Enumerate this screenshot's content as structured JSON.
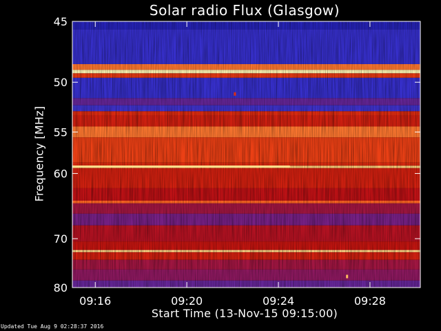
{
  "updated": "Updated Tue Aug  9 02:28:37 2016",
  "chart_data": {
    "type": "heatmap",
    "title": "Solar radio Flux (Glasgow)",
    "xlabel": "Start Time (13-Nov-15 09:15:00)",
    "ylabel": "Frequency [MHz]",
    "x_ticks": [
      "09:16",
      "09:20",
      "09:24",
      "09:28"
    ],
    "x_tick_minutes": [
      1,
      5,
      9,
      13
    ],
    "xlim_minutes": [
      0,
      15.2
    ],
    "y_ticks": [
      45,
      50,
      55,
      60,
      70,
      80
    ],
    "ylim": [
      45,
      80
    ],
    "colormap": [
      "#1a1aa8",
      "#3b33d0",
      "#8a1a6a",
      "#c01010",
      "#e03010",
      "#ff6020",
      "#ffc060",
      "#ffffc0"
    ],
    "bands": [
      {
        "from": 45,
        "to": 45.6,
        "level": 0.05
      },
      {
        "from": 45.6,
        "to": 48.4,
        "level": 0.12
      },
      {
        "from": 48.4,
        "to": 48.9,
        "level": 0.75
      },
      {
        "from": 48.9,
        "to": 49.2,
        "level": 0.98
      },
      {
        "from": 49.2,
        "to": 49.6,
        "level": 0.6
      },
      {
        "from": 49.6,
        "to": 51.5,
        "level": 0.12
      },
      {
        "from": 51.5,
        "to": 52.2,
        "level": 0.22
      },
      {
        "from": 52.2,
        "to": 52.8,
        "level": 0.15
      },
      {
        "from": 52.8,
        "to": 53.2,
        "level": 0.55
      },
      {
        "from": 53.2,
        "to": 54.4,
        "level": 0.5
      },
      {
        "from": 54.4,
        "to": 55.6,
        "level": 0.75
      },
      {
        "from": 55.6,
        "to": 58.6,
        "level": 0.62
      },
      {
        "from": 58.6,
        "to": 59.0,
        "level": 0.55
      },
      {
        "from": 59.0,
        "to": 59.3,
        "level": 0.9
      },
      {
        "from": 59.3,
        "to": 62.0,
        "level": 0.5
      },
      {
        "from": 62.0,
        "to": 63.8,
        "level": 0.42
      },
      {
        "from": 63.8,
        "to": 64.2,
        "level": 0.72
      },
      {
        "from": 64.2,
        "to": 65.8,
        "level": 0.35
      },
      {
        "from": 65.8,
        "to": 67.7,
        "level": 0.25
      },
      {
        "from": 67.7,
        "to": 70.5,
        "level": 0.4
      },
      {
        "from": 70.5,
        "to": 72.1,
        "level": 0.45
      },
      {
        "from": 72.1,
        "to": 72.5,
        "level": 0.92
      },
      {
        "from": 72.5,
        "to": 74.0,
        "level": 0.5
      },
      {
        "from": 74.0,
        "to": 76.0,
        "level": 0.35
      },
      {
        "from": 76.0,
        "to": 78.4,
        "level": 0.3
      },
      {
        "from": 78.4,
        "to": 80,
        "level": 0.22
      }
    ],
    "features": [
      {
        "kind": "hline",
        "freq": 59.1,
        "x_from": 0,
        "x_to": 9.5,
        "level": 0.92
      },
      {
        "kind": "spot",
        "freq": 51.1,
        "x": 7.1,
        "level": 0.55
      },
      {
        "kind": "spot",
        "freq": 77.5,
        "x": 12.0,
        "level": 0.85
      }
    ]
  }
}
